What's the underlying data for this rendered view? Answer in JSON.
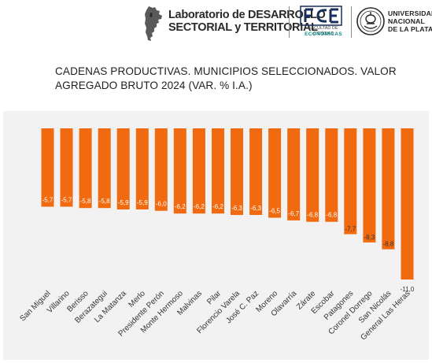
{
  "header": {
    "lab_name_line1": "Laboratorio de DESARROLLO",
    "lab_name_line2": "SECTORIAL y TERRITORIAL",
    "fce_line1": "FACULTAD DE CIENCIAS",
    "fce_line2": "ECONÓMICAS",
    "unlp_line1": "UNIVERSIDAD",
    "unlp_line2": "NACIONAL",
    "unlp_line3": "DE LA PLATA",
    "brand_color": "#1a2e5a",
    "fce_color": "#0c8a8a"
  },
  "chart_data": {
    "type": "bar",
    "title": "CADENAS PRODUCTIVAS. MUNICIPIOS SELECCIONADOS. VALOR AGREGADO BRUTO 2024 (VAR. % I.A.)",
    "categories": [
      "San Miguel",
      "Villarino",
      "Berisso",
      "Berazategui",
      "La Matanza",
      "Merlo",
      "Presidente Perón",
      "Monte Hermoso",
      "Malvinas",
      "Pilar",
      "Florencio Varela",
      "José C. Paz",
      "Moreno",
      "Olavarría",
      "Zárate",
      "Escobar",
      "Patagones",
      "Coronel Dorrego",
      "San Nicolás",
      "General Las Heras"
    ],
    "values": [
      -5.7,
      -5.7,
      -5.8,
      -5.8,
      -5.9,
      -5.9,
      -6.0,
      -6.2,
      -6.2,
      -6.2,
      -6.3,
      -6.3,
      -6.5,
      -6.7,
      -6.8,
      -6.8,
      -7.7,
      -8.3,
      -8.8,
      -11.0
    ],
    "labels": [
      "-5,7",
      "-5,7",
      "-5,8",
      "-5,8",
      "-5,9",
      "-5,9",
      "-6,0",
      "-6,2",
      "-6,2",
      "-6,2",
      "-6,3",
      "-6,3",
      "-6,5",
      "-6,7",
      "-6,8",
      "-6,8",
      "-7,7",
      "-8,3",
      "-8,8",
      "-11,0"
    ],
    "ylim": [
      -11.0,
      0
    ],
    "grid": false,
    "legend": "none",
    "bar_color": "#f26a0f",
    "background_color": "#f2f2f2"
  }
}
